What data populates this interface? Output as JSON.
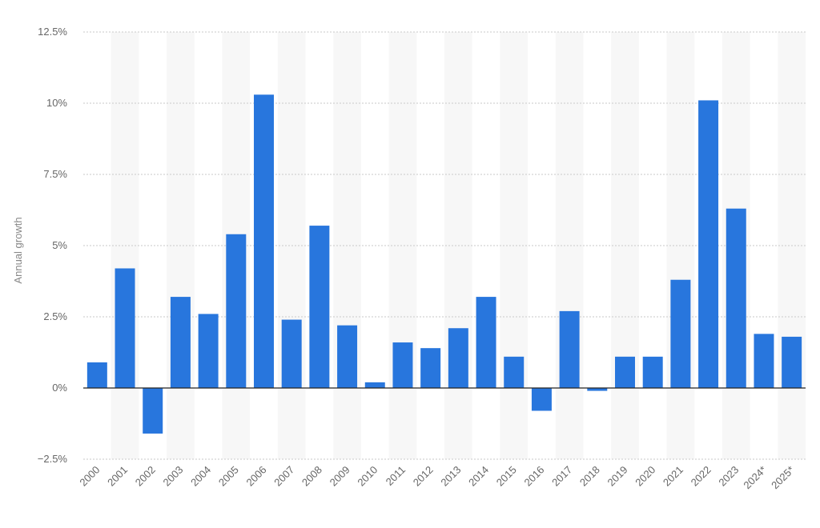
{
  "chart_data": {
    "type": "bar",
    "ylabel": "Annual growth",
    "xlabel": "",
    "title": "",
    "categories": [
      "2000",
      "2001",
      "2002",
      "2003",
      "2004",
      "2005",
      "2006",
      "2007",
      "2008",
      "2009",
      "2010",
      "2011",
      "2012",
      "2013",
      "2014",
      "2015",
      "2016",
      "2017",
      "2018",
      "2019",
      "2020",
      "2021",
      "2022",
      "2023",
      "2024*",
      "2025*"
    ],
    "values": [
      0.9,
      4.2,
      -1.6,
      3.2,
      2.6,
      5.4,
      10.3,
      2.4,
      5.7,
      2.2,
      0.2,
      1.6,
      1.4,
      2.1,
      3.2,
      1.1,
      -0.8,
      2.7,
      -0.1,
      1.1,
      1.1,
      3.8,
      10.1,
      6.3,
      1.9,
      1.8
    ],
    "ylim": [
      -2.5,
      12.5
    ],
    "yticks": [
      -2.5,
      0,
      2.5,
      5,
      7.5,
      10,
      12.5
    ],
    "ytick_labels": [
      "−2.5%",
      "0%",
      "2.5%",
      "5%",
      "7.5%",
      "10%",
      "12.5%"
    ],
    "grid": true,
    "colors": {
      "bar": "#2876dd",
      "band": "#f7f7f7",
      "grid": "#c8c8c8",
      "zero_line": "#222222"
    }
  }
}
